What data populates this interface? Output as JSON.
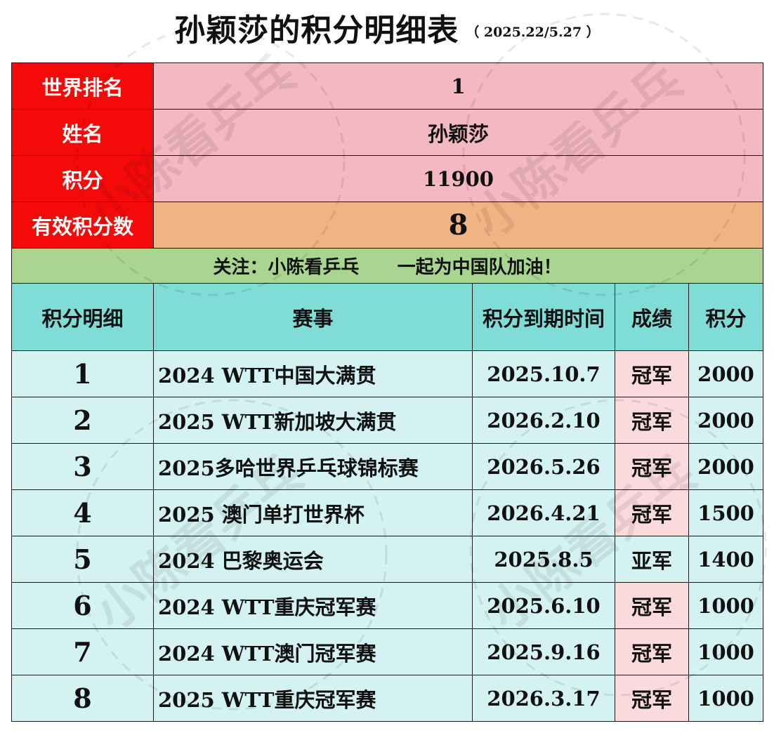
{
  "header": {
    "title": "孙颖莎的积分明细表",
    "date_range": "（ 2025.22/5.27 ）"
  },
  "summary": [
    {
      "label": "世界排名",
      "value": "1"
    },
    {
      "label": "姓名",
      "value": "孙颖莎"
    },
    {
      "label": "积分",
      "value": "11900"
    },
    {
      "label": "有效积分数",
      "value": "8"
    }
  ],
  "note": "关注：小陈看乒乓      一起为中国队加油！",
  "watermark": "小陈看乒乓",
  "columns": [
    "积分明细",
    "赛事",
    "积分到期时间",
    "成绩",
    "积分"
  ],
  "rows": [
    {
      "no": "1",
      "event": "2024 WTT中国大满贯",
      "expiry": "2025.10.7",
      "result": "冠军",
      "points": "2000"
    },
    {
      "no": "2",
      "event": "2025 WTT新加坡大满贯",
      "expiry": "2026.2.10",
      "result": "冠军",
      "points": "2000"
    },
    {
      "no": "3",
      "event": "2025多哈世界乒乓球锦标赛",
      "expiry": "2026.5.26",
      "result": "冠军",
      "points": "2000"
    },
    {
      "no": "4",
      "event": "2025 澳门单打世界杯",
      "expiry": "2026.4.21",
      "result": "冠军",
      "points": "1500"
    },
    {
      "no": "5",
      "event": "2024 巴黎奥运会",
      "expiry": "2025.8.5",
      "result": "亚军",
      "points": "1400"
    },
    {
      "no": "6",
      "event": "2024 WTT重庆冠军赛",
      "expiry": "2025.6.10",
      "result": "冠军",
      "points": "1000"
    },
    {
      "no": "7",
      "event": "2024 WTT澳门冠军赛",
      "expiry": "2025.9.16",
      "result": "冠军",
      "points": "1000"
    },
    {
      "no": "8",
      "event": "2025 WTT重庆冠军赛",
      "expiry": "2026.3.17",
      "result": "冠军",
      "points": "1000"
    }
  ],
  "colors": {
    "label_red": "#f50a0a",
    "value_pink": "#f4b8c1",
    "value_orange": "#f1b384",
    "note_green": "#a9d591",
    "header_teal": "#80dcd6",
    "row_light": "#d4f2f2",
    "champion_pink": "#fbdade"
  }
}
